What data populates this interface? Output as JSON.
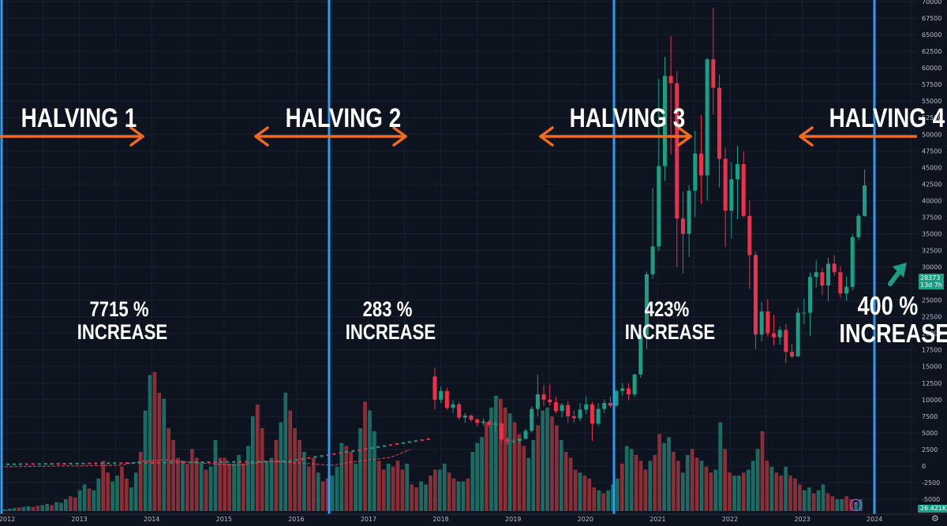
{
  "chart_data": {
    "type": "candlestick",
    "price_axis": {
      "ylim": [
        -5000,
        70000
      ],
      "ticks": [
        "-5000",
        "-2500",
        "0",
        "2500",
        "5000",
        "7500",
        "10000",
        "12500",
        "15000",
        "17500",
        "20000",
        "22500",
        "25000",
        "27500",
        "30000",
        "32500",
        "35000",
        "37500",
        "40000",
        "42500",
        "45000",
        "47500",
        "50000",
        "52500",
        "55000",
        "57500",
        "60000",
        "62500",
        "65000",
        "67500",
        "70000"
      ]
    },
    "time_axis": {
      "ticks": [
        "2012",
        "2013",
        "2014",
        "2015",
        "2016",
        "2017",
        "2018",
        "2019",
        "2020",
        "2021",
        "2022",
        "2023",
        "2024"
      ]
    },
    "candles_ohlc": [
      [
        13500,
        14800,
        8500,
        10000
      ],
      [
        10000,
        12000,
        9500,
        11300
      ],
      [
        11300,
        11800,
        8500,
        8800
      ],
      [
        8800,
        9900,
        8000,
        9300
      ],
      [
        9300,
        9700,
        7000,
        7300
      ],
      [
        7300,
        8000,
        6500,
        7600
      ],
      [
        7600,
        7800,
        6700,
        7000
      ],
      [
        7000,
        7200,
        6000,
        6500
      ],
      [
        6500,
        7200,
        6100,
        6700
      ],
      [
        6700,
        7000,
        5800,
        6200
      ],
      [
        6200,
        6800,
        5200,
        6400
      ],
      [
        6400,
        6700,
        3500,
        4000
      ],
      [
        4000,
        4300,
        3200,
        3700
      ],
      [
        3700,
        4100,
        3400,
        3800
      ],
      [
        3800,
        4200,
        3600,
        4100
      ],
      [
        4100,
        5600,
        4000,
        5300
      ],
      [
        5300,
        9000,
        5100,
        8600
      ],
      [
        8600,
        13800,
        7500,
        10800
      ],
      [
        10800,
        12200,
        9000,
        10000
      ],
      [
        10000,
        12300,
        9100,
        9600
      ],
      [
        9600,
        10500,
        7900,
        8300
      ],
      [
        8300,
        9500,
        7300,
        9200
      ],
      [
        9200,
        9800,
        6500,
        7500
      ],
      [
        7500,
        8400,
        6500,
        7200
      ],
      [
        7200,
        9500,
        6800,
        8500
      ],
      [
        8500,
        10500,
        7800,
        9300
      ],
      [
        9300,
        9700,
        3800,
        6400
      ],
      [
        6400,
        9500,
        6000,
        8600
      ],
      [
        8600,
        10000,
        8000,
        9500
      ],
      [
        9500,
        10500,
        8800,
        9100
      ],
      [
        9100,
        11500,
        9000,
        11300
      ],
      [
        11300,
        12500,
        10600,
        11700
      ],
      [
        11700,
        12500,
        9900,
        10800
      ],
      [
        10800,
        13900,
        10400,
        13800
      ],
      [
        13800,
        19800,
        13300,
        19700
      ],
      [
        19700,
        29300,
        17600,
        28900
      ],
      [
        28900,
        41900,
        28200,
        33100
      ],
      [
        33100,
        58300,
        32400,
        45200
      ],
      [
        45200,
        61700,
        43000,
        58800
      ],
      [
        58800,
        64800,
        47000,
        57700
      ],
      [
        57700,
        59500,
        30000,
        37300
      ],
      [
        37300,
        41300,
        29000,
        35000
      ],
      [
        35000,
        42300,
        31500,
        41500
      ],
      [
        41500,
        50500,
        37500,
        47100
      ],
      [
        47100,
        52900,
        39500,
        43800
      ],
      [
        43800,
        61500,
        40000,
        61300
      ],
      [
        61300,
        69000,
        53000,
        57000
      ],
      [
        57000,
        59000,
        42000,
        46300
      ],
      [
        46300,
        48000,
        33000,
        38500
      ],
      [
        38500,
        45800,
        34300,
        43200
      ],
      [
        43200,
        48200,
        37200,
        45500
      ],
      [
        45500,
        47400,
        37500,
        37700
      ],
      [
        37700,
        40000,
        26700,
        31800
      ],
      [
        31800,
        32300,
        17600,
        19800
      ],
      [
        19800,
        24700,
        18800,
        23300
      ],
      [
        23300,
        25200,
        19500,
        20000
      ],
      [
        20000,
        22800,
        18200,
        19400
      ],
      [
        19400,
        21000,
        18300,
        20500
      ],
      [
        20500,
        21400,
        15500,
        17200
      ],
      [
        17200,
        18400,
        16300,
        16500
      ],
      [
        16500,
        23900,
        16500,
        23100
      ],
      [
        23100,
        25200,
        21400,
        23100
      ],
      [
        23100,
        29200,
        19600,
        28500
      ],
      [
        28500,
        31000,
        26900,
        29200
      ],
      [
        29200,
        29800,
        25800,
        27200
      ],
      [
        27200,
        31400,
        24800,
        30500
      ],
      [
        30500,
        31800,
        28600,
        29200
      ],
      [
        29200,
        30100,
        25400,
        26000
      ],
      [
        26000,
        28600,
        24900,
        27000
      ],
      [
        27000,
        35000,
        26500,
        34500
      ],
      [
        34500,
        38000,
        34000,
        37700
      ],
      [
        37700,
        44700,
        37600,
        42300
      ]
    ],
    "volume_pct": [
      0.3,
      0.4,
      0.5,
      0.6,
      0.7,
      0.8,
      0.7,
      0.9,
      1.0,
      1.2,
      1.0,
      1.5,
      1.4,
      2.0,
      2.5,
      2.3,
      3.5,
      4.5,
      3.8,
      3.5,
      5.5,
      8.5,
      6.5,
      5.0,
      6.0,
      7.5,
      5.5,
      4.0,
      6.5,
      10.0,
      17.0,
      23.0,
      23.5,
      20.0,
      19.0,
      14.0,
      12.0,
      9.0,
      8.5,
      8.0,
      10.5,
      9.0,
      8.0,
      7.0,
      7.5,
      12.0,
      9.0,
      9.0,
      8.0,
      8.0,
      9.5,
      8.0,
      11.0,
      16.0,
      18.0,
      14.0,
      8.5,
      9.0,
      12.0,
      15.0,
      20.0,
      17.0,
      14.0,
      12.0,
      10.0,
      7.5,
      9.0,
      6.5,
      5.0,
      5.5,
      6.0,
      7.5,
      11.5,
      11.0,
      10.0,
      8.0,
      14.0,
      18.5,
      17.0,
      13.5,
      8.5,
      7.0,
      8.0,
      7.5,
      8.5,
      7.0,
      8.0,
      4.5,
      4.0,
      5.0,
      4.5,
      6.0,
      7.0,
      7.0,
      8.0,
      6.5,
      5.5,
      5.0,
      5.0,
      5.5,
      10.0,
      11.5,
      12.5,
      15.0,
      17.5,
      19.5,
      19.0,
      17.5,
      16.5,
      15.0,
      13.0,
      11.0,
      9.0,
      12.0,
      14.5,
      17.0,
      17.5,
      16.0,
      14.5,
      12.0,
      10.0,
      9.0,
      7.0,
      6.5,
      6.0,
      5.5,
      4.0,
      3.5,
      3.0,
      3.5,
      4.5,
      5.5,
      8.0,
      11.0,
      10.5,
      9.5,
      8.5,
      7.0,
      8.5,
      9.5,
      13.0,
      11.5,
      12.5,
      10.0,
      8.5,
      6.5,
      9.5,
      10.5,
      9.0,
      8.5,
      7.5,
      6.5,
      7.0,
      15.0,
      10.5,
      6.5,
      6.0,
      6.0,
      6.5,
      7.0,
      8.5,
      10.5,
      13.5,
      8.5,
      7.5,
      6.5,
      6.0,
      7.5,
      6.0,
      5.5,
      4.5,
      3.5,
      4.0,
      3.0,
      3.5,
      4.5,
      3.0,
      2.5,
      2.0,
      2.0,
      2.5,
      2.0,
      1.5,
      2.0
    ],
    "current_price": "28373",
    "countdown": "13d 7h",
    "volume_label": "26.421K"
  },
  "annotations": {
    "halvings": [
      "HALVING 1",
      "HALVING 2",
      "HALVING 3",
      "HALVING 4"
    ],
    "increases": [
      {
        "pct": "7715 %",
        "word": "INCREASE"
      },
      {
        "pct": "283 %",
        "word": "INCREASE"
      },
      {
        "pct": "423%",
        "word": "INCREASE"
      },
      {
        "pct": "400 %",
        "word": "INCREASE ?"
      }
    ]
  },
  "colors": {
    "background": "#0e1320",
    "grid": "#1a2030",
    "bull": "#1a9e84",
    "bear": "#f0304a",
    "bull_vol": "#1c6b63",
    "bear_vol": "#8c2e36",
    "halving_line": "#2a9df4",
    "arrow": "#f26a1e"
  },
  "icons": {
    "lightning": "lightning-icon",
    "gear": "gear-icon"
  }
}
